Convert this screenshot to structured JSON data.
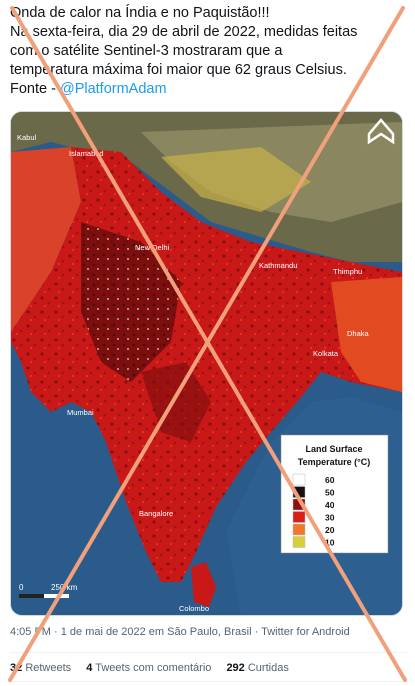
{
  "tweet": {
    "lines": [
      "Onda de calor na Índia e no Paquistão!!!",
      "Na sexta-feira,  dia 29 de abril de 2022, medidas feitas",
      "com o satélite Sentinel-3 mostraram que a",
      "temperatura máxima foi maior que 62 graus Celsius."
    ],
    "source_prefix": "Fonte - ",
    "mention": "@PlatformAdam"
  },
  "map": {
    "places": {
      "kabul": "Kabul",
      "islamabad": "Islamabad",
      "new_delhi": "New Delhi",
      "kathmandu": "Kathmandu",
      "thimphu": "Thimphu",
      "dhaka": "Dhaka",
      "kolkata": "Kolkata",
      "mumbai": "Mumbai",
      "bangalore": "Bangalore",
      "colombo": "Colombo"
    },
    "scale": {
      "zero": "0",
      "distance": "250 km"
    },
    "legend": {
      "title_line1": "Land Surface",
      "title_line2": "Temperature (°C)",
      "items": [
        {
          "label": "60",
          "color": "#ffffff"
        },
        {
          "label": "50",
          "color": "#1a1010"
        },
        {
          "label": "40",
          "color": "#8b0f0f"
        },
        {
          "label": "30",
          "color": "#d81d1d"
        },
        {
          "label": "20",
          "color": "#f0782a"
        },
        {
          "label": "10",
          "color": "#d4cf3a"
        }
      ]
    }
  },
  "meta": {
    "text": "4:05 PM · 1 de mai de 2022 em São Paulo, Brasil · Twitter for Android"
  },
  "stats": {
    "retweets_count": "32",
    "retweets_label": "Retweets",
    "quotes_count": "4",
    "quotes_label": "Tweets com comentário",
    "likes_count": "292",
    "likes_label": "Curtidas"
  },
  "colors": {
    "cross": "#f0a07a",
    "link": "#1d9bf0",
    "ocean": "#2a5b8a",
    "land_hot": "#d81d1d"
  }
}
